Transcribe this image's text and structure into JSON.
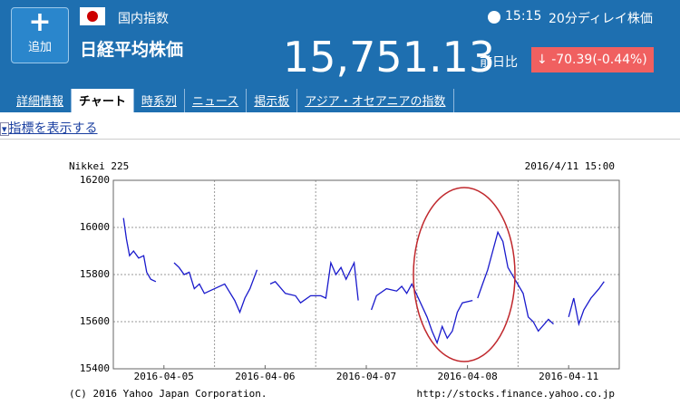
{
  "header": {
    "add_button": "追加",
    "market": "国内指数",
    "name": "日経平均株価",
    "time": "15:15",
    "delay": "20分ディレイ株価",
    "price": "15,751.13",
    "change_label": "前日比",
    "change": "-70.39(-0.44%)"
  },
  "tabs": [
    "詳細情報",
    "チャート",
    "時系列",
    "ニュース",
    "掲示板",
    "アジア・オセアニアの指数"
  ],
  "active_tab": 1,
  "indicator_link": "指標を表示する",
  "chart_data": {
    "type": "line",
    "title": "Nikkei 225",
    "timestamp": "2016/4/11 15:00",
    "copyright": "(C) 2016 Yahoo Japan Corporation.",
    "source": "http://stocks.finance.yahoo.co.jp",
    "xlim": [
      0,
      5
    ],
    "xticks": [
      {
        "value": 0.5,
        "label": "2016-04-05"
      },
      {
        "value": 1.5,
        "label": "2016-04-06"
      },
      {
        "value": 2.5,
        "label": "2016-04-07"
      },
      {
        "value": 3.5,
        "label": "2016-04-08"
      },
      {
        "value": 4.5,
        "label": "2016-04-11"
      }
    ],
    "xgrid": [
      1,
      2,
      3,
      4
    ],
    "ylim": [
      15400,
      16200
    ],
    "yticks": [
      15400,
      15600,
      15800,
      16000,
      16200
    ],
    "grid": true,
    "series": [
      {
        "name": "Nikkei 225",
        "color": "#1a1acc",
        "x": [
          0.1,
          0.13,
          0.16,
          0.2,
          0.25,
          0.3,
          0.33,
          0.37,
          0.42,
          null,
          0.6,
          0.65,
          0.7,
          0.75,
          0.8,
          0.85,
          0.9,
          0.95,
          1.1,
          1.2,
          1.25,
          1.3,
          1.35,
          1.42,
          null,
          1.55,
          1.6,
          1.7,
          1.8,
          1.85,
          1.95,
          2.05,
          2.1,
          2.15,
          2.2,
          2.25,
          2.3,
          2.38,
          2.42,
          null,
          2.55,
          2.6,
          2.7,
          2.8,
          2.85,
          2.9,
          2.95,
          3.1,
          3.15,
          3.2,
          3.25,
          3.3,
          3.35,
          3.4,
          3.45,
          3.55,
          null,
          3.6,
          3.65,
          3.7,
          3.75,
          3.8,
          3.85,
          3.9,
          4.05,
          4.1,
          4.15,
          4.2,
          4.3,
          4.35,
          null,
          4.5,
          4.55,
          4.6,
          4.65,
          4.72,
          4.8,
          4.85
        ],
        "values": [
          16040,
          15950,
          15880,
          15900,
          15870,
          15880,
          15810,
          15780,
          15770,
          null,
          15850,
          15830,
          15800,
          15810,
          15740,
          15760,
          15720,
          15730,
          15760,
          15690,
          15640,
          15700,
          15740,
          15820,
          null,
          15760,
          15770,
          15720,
          15710,
          15680,
          15710,
          15710,
          15700,
          15850,
          15800,
          15830,
          15780,
          15850,
          15690,
          null,
          15650,
          15710,
          15740,
          15730,
          15750,
          15720,
          15760,
          15620,
          15560,
          15510,
          15580,
          15530,
          15560,
          15640,
          15680,
          15690,
          null,
          15700,
          15760,
          15820,
          15900,
          15980,
          15940,
          15830,
          15720,
          15620,
          15600,
          15560,
          15610,
          15590,
          null,
          15620,
          15700,
          15590,
          15650,
          15700,
          15740,
          15770
        ]
      }
    ]
  }
}
